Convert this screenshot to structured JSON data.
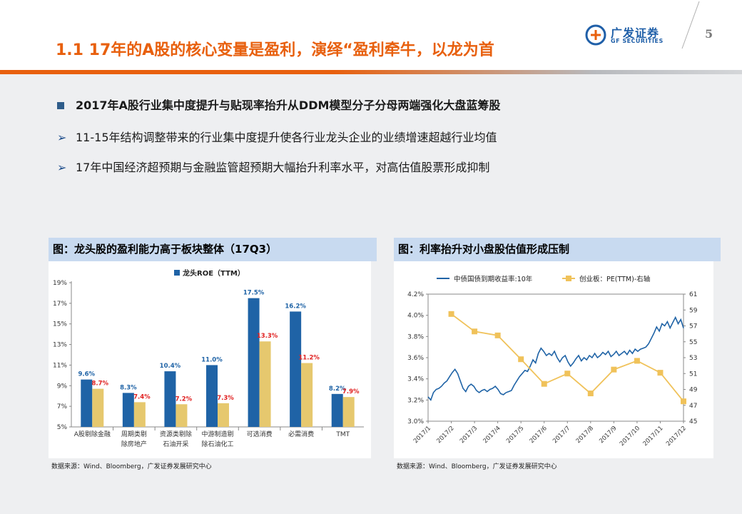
{
  "header": {
    "title": "1.1 17年的A股的核心变量是盈利，演绎“盈利牵牛，以龙为首",
    "logo_cn": "广发证券",
    "logo_en": "GF SECURITIES",
    "page_number": "5"
  },
  "bullets": [
    "2017年A股行业集中度提升与贴现率抬升从DDM模型分子分母两端强化大盘蓝筹股",
    "11-15年结构调整带来的行业集中度提升使各行业龙头企业的业绩增速超越行业均值",
    "17年中国经济超预期与金融监管超预期大幅抬升利率水平，对高估值股票形成抑制"
  ],
  "colors": {
    "accent": "#e8600e",
    "blue": "#1f63a6",
    "gold": "#e6c86e",
    "red_label": "#e02020",
    "line_blue": "#1f63a6",
    "line_gold": "#f0c25a"
  },
  "chart_data": [
    {
      "type": "bar",
      "panel_title": "图：龙头股的盈利能力高于板块整体（17Q3）",
      "legend": [
        "龙头ROE（TTM）"
      ],
      "categories": [
        [
          "A股剔除金融"
        ],
        [
          "周期类剔",
          "除房地产"
        ],
        [
          "资源类剔除",
          "石油开采"
        ],
        [
          "中游制造剔",
          "除石油化工"
        ],
        [
          "可选消费"
        ],
        [
          "必需消费"
        ],
        [
          "TMT"
        ]
      ],
      "series": [
        {
          "name": "龙头ROE（TTM）",
          "values": [
            9.6,
            8.3,
            10.4,
            11.0,
            17.5,
            16.2,
            8.2
          ],
          "labels": [
            "9.6%",
            "8.3%",
            "10.4%",
            "11.0%",
            "17.5%",
            "16.2%",
            "8.2%"
          ]
        },
        {
          "values": [
            8.7,
            7.4,
            7.2,
            7.3,
            13.3,
            11.2,
            7.9
          ],
          "labels": [
            "8.7%",
            "7.4%",
            "7.2%",
            "7.3%",
            "13.3%",
            "11.2%",
            "7.9%"
          ]
        }
      ],
      "yticks": [
        "5%",
        "7%",
        "9%",
        "11%",
        "13%",
        "15%",
        "17%",
        "19%"
      ],
      "ylim": [
        5,
        19
      ],
      "source": "数据来源：Wind、Bloomberg，广发证券发展研究中心"
    },
    {
      "type": "line",
      "panel_title": "图：利率抬升对小盘股估值形成压制",
      "series": [
        {
          "name": "中债国债到期收益率:10年",
          "axis": "left",
          "values": [
            3.23,
            3.2,
            3.27,
            3.3,
            3.31,
            3.33,
            3.36,
            3.38,
            3.42,
            3.46,
            3.49,
            3.45,
            3.38,
            3.31,
            3.28,
            3.33,
            3.35,
            3.33,
            3.29,
            3.27,
            3.29,
            3.3,
            3.28,
            3.3,
            3.31,
            3.33,
            3.3,
            3.26,
            3.25,
            3.27,
            3.28,
            3.29,
            3.34,
            3.38,
            3.42,
            3.45,
            3.48,
            3.47,
            3.52,
            3.58,
            3.55,
            3.64,
            3.69,
            3.66,
            3.62,
            3.64,
            3.62,
            3.66,
            3.6,
            3.56,
            3.6,
            3.62,
            3.56,
            3.52,
            3.55,
            3.59,
            3.62,
            3.57,
            3.6,
            3.58,
            3.62,
            3.6,
            3.64,
            3.6,
            3.62,
            3.65,
            3.63,
            3.66,
            3.61,
            3.63,
            3.66,
            3.62,
            3.64,
            3.66,
            3.63,
            3.67,
            3.64,
            3.68,
            3.66,
            3.68,
            3.69,
            3.7,
            3.73,
            3.78,
            3.83,
            3.89,
            3.85,
            3.92,
            3.9,
            3.94,
            3.88,
            3.93,
            3.98,
            3.92,
            3.96,
            3.88
          ]
        },
        {
          "name": "创业板：PE(TTM)-右轴",
          "axis": "right",
          "values": [
            58.5,
            56.3,
            55.8,
            52.8,
            49.7,
            51.0,
            48.5,
            51.5,
            52.6,
            51.1,
            47.5
          ]
        }
      ],
      "x_labels": [
        "2017/1",
        "2017/2",
        "2017/3",
        "2017/4",
        "2017/5",
        "2017/6",
        "2017/7",
        "2017/8",
        "2017/9",
        "2017/10",
        "2017/11",
        "2017/12"
      ],
      "yticks_left": [
        "3.0%",
        "3.2%",
        "3.4%",
        "3.6%",
        "3.8%",
        "4.0%",
        "4.2%"
      ],
      "ylim_left": [
        3.0,
        4.2
      ],
      "yticks_right": [
        "45",
        "47",
        "49",
        "51",
        "53",
        "55",
        "57",
        "59",
        "61"
      ],
      "ylim_right": [
        45,
        61
      ],
      "source": "数据来源：Wind、Bloomberg，广发证券发展研究中心"
    }
  ]
}
